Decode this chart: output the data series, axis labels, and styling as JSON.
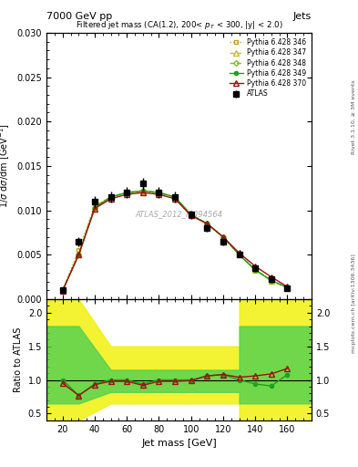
{
  "title_top": "7000 GeV pp",
  "title_right": "Jets",
  "plot_title": "Filtered jet mass (CA(1.2), 200< p_{T} < 300, |y| < 2.0)",
  "xlabel": "Jet mass [GeV]",
  "ylabel_main": "1/σ dσ/dm [GeV⁻¹]",
  "ylabel_ratio": "Ratio to ATLAS",
  "watermark": "ATLAS_2012_I1094564",
  "right_label": "mcplots.cern.ch [arXiv:1306.3436]",
  "rivet_label": "Rivet 3.1.10, ≥ 3M events",
  "atlas_x": [
    20,
    30,
    40,
    50,
    60,
    70,
    80,
    90,
    100,
    110,
    120,
    130,
    140,
    150,
    160
  ],
  "atlas_y": [
    0.001,
    0.0065,
    0.011,
    0.0115,
    0.012,
    0.013,
    0.012,
    0.0115,
    0.0095,
    0.008,
    0.0065,
    0.005,
    0.0035,
    0.0023,
    0.0012
  ],
  "atlas_yerr": [
    0.0003,
    0.0005,
    0.0006,
    0.0006,
    0.0006,
    0.0007,
    0.0006,
    0.0006,
    0.0005,
    0.0004,
    0.0004,
    0.0003,
    0.0003,
    0.0002,
    0.0002
  ],
  "py346_x": [
    20,
    30,
    40,
    50,
    60,
    70,
    80,
    90,
    100,
    110,
    120,
    130,
    140,
    150,
    160
  ],
  "py346_y": [
    0.001,
    0.0055,
    0.0105,
    0.0115,
    0.012,
    0.012,
    0.012,
    0.0115,
    0.0095,
    0.0085,
    0.007,
    0.005,
    0.0033,
    0.0021,
    0.0013
  ],
  "py346_color": "#c8a020",
  "py346_label": "Pythia 6.428 346",
  "py346_style": "dotted",
  "py346_marker": "s",
  "py347_x": [
    20,
    30,
    40,
    50,
    60,
    70,
    80,
    90,
    100,
    110,
    120,
    130,
    140,
    150,
    160
  ],
  "py347_y": [
    0.001,
    0.005,
    0.0105,
    0.0115,
    0.012,
    0.0122,
    0.012,
    0.0115,
    0.0095,
    0.0085,
    0.007,
    0.005,
    0.0033,
    0.0021,
    0.0013
  ],
  "py347_color": "#c8c020",
  "py347_label": "Pythia 6.428 347",
  "py347_style": "dashed",
  "py347_marker": "^",
  "py348_x": [
    20,
    30,
    40,
    50,
    60,
    70,
    80,
    90,
    100,
    110,
    120,
    130,
    140,
    150,
    160
  ],
  "py348_y": [
    0.001,
    0.005,
    0.0103,
    0.0115,
    0.012,
    0.0122,
    0.012,
    0.0115,
    0.0095,
    0.0085,
    0.007,
    0.005,
    0.0033,
    0.0021,
    0.0013
  ],
  "py348_color": "#80c020",
  "py348_label": "Pythia 6.428 348",
  "py348_style": "dashed",
  "py348_marker": "D",
  "py349_x": [
    20,
    30,
    40,
    50,
    60,
    70,
    80,
    90,
    100,
    110,
    120,
    130,
    140,
    150,
    160
  ],
  "py349_y": [
    0.001,
    0.005,
    0.0103,
    0.0115,
    0.012,
    0.0122,
    0.012,
    0.0115,
    0.0095,
    0.0085,
    0.007,
    0.005,
    0.0033,
    0.0021,
    0.0013
  ],
  "py349_color": "#20a020",
  "py349_label": "Pythia 6.428 349",
  "py349_style": "solid",
  "py349_marker": "o",
  "py370_x": [
    20,
    30,
    40,
    50,
    60,
    70,
    80,
    90,
    100,
    110,
    120,
    130,
    140,
    150,
    160
  ],
  "py370_y": [
    0.00095,
    0.005,
    0.0102,
    0.0113,
    0.0118,
    0.012,
    0.0118,
    0.0113,
    0.0094,
    0.0085,
    0.007,
    0.0052,
    0.0037,
    0.0025,
    0.0014
  ],
  "py370_color": "#a01010",
  "py370_label": "Pythia 6.428 370",
  "py370_style": "solid",
  "py370_marker": "^",
  "ratio_349_y": [
    1.0,
    0.77,
    0.94,
    1.0,
    1.0,
    0.94,
    1.0,
    1.0,
    1.0,
    1.06,
    1.08,
    1.0,
    0.94,
    0.91,
    1.08
  ],
  "ratio_370_y": [
    0.95,
    0.77,
    0.93,
    0.98,
    0.98,
    0.92,
    0.98,
    0.98,
    0.99,
    1.06,
    1.08,
    1.04,
    1.06,
    1.09,
    1.17
  ],
  "band_x_inner": [
    10,
    30,
    50,
    80,
    130,
    160,
    175
  ],
  "band_inner_lo": [
    0.75,
    0.75,
    0.9,
    0.9,
    0.75,
    0.75,
    0.75
  ],
  "band_inner_hi": [
    1.8,
    1.8,
    1.15,
    1.15,
    1.8,
    1.8,
    1.8
  ],
  "band_x_outer": [
    10,
    30,
    50,
    80,
    130,
    160,
    175
  ],
  "band_outer_lo": [
    0.4,
    0.4,
    0.75,
    0.75,
    0.4,
    0.4,
    0.4
  ],
  "band_outer_hi": [
    2.2,
    2.2,
    1.5,
    1.5,
    2.2,
    2.2,
    2.2
  ],
  "main_ylim": [
    0,
    0.03
  ],
  "ratio_ylim": [
    0.4,
    2.2
  ],
  "xlim": [
    10,
    175
  ],
  "main_yticks": [
    0,
    0.005,
    0.01,
    0.015,
    0.02,
    0.025,
    0.03
  ],
  "ratio_yticks": [
    0.5,
    1.0,
    1.5,
    2.0
  ],
  "background_color": "#ffffff"
}
